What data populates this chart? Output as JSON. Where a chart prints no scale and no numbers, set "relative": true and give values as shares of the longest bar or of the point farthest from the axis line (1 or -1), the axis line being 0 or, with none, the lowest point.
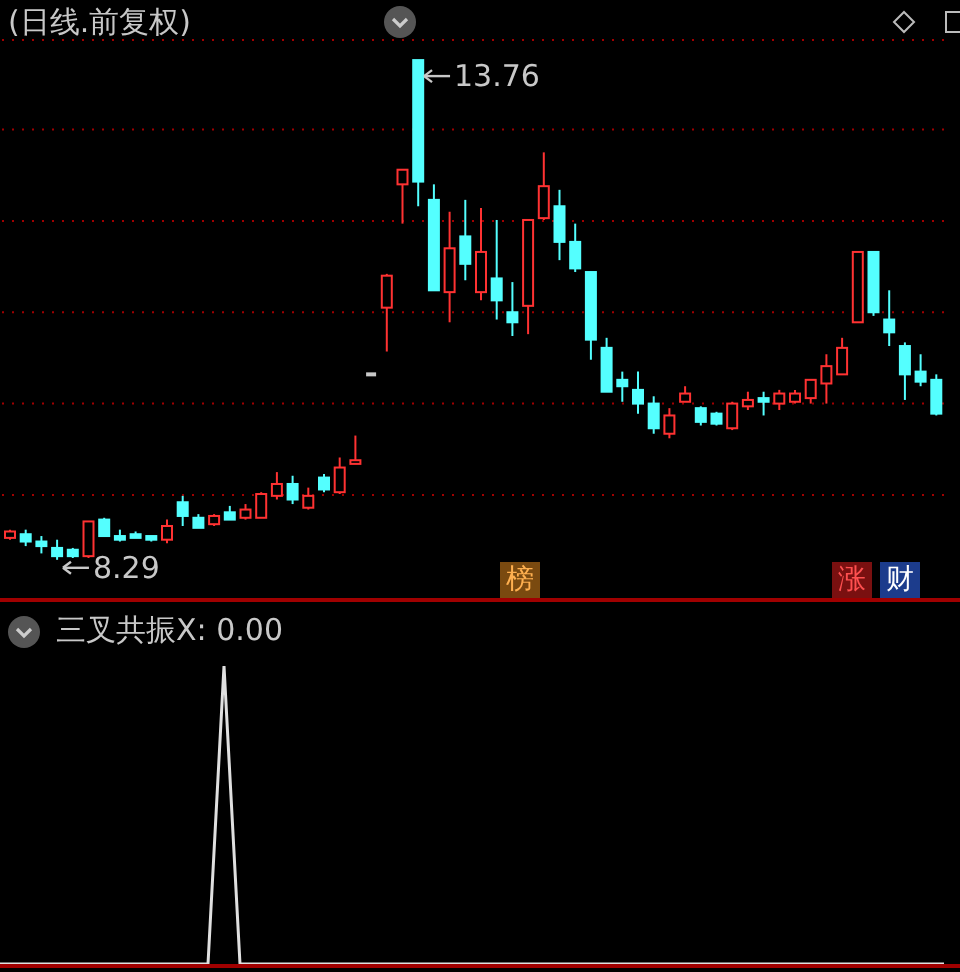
{
  "chart_data": [
    {
      "type": "candlestick",
      "title": "(日线.前复权)",
      "categories": [
        null,
        null,
        null,
        null,
        null,
        null,
        null,
        null,
        null,
        null,
        null,
        null,
        null,
        null,
        null,
        null,
        null,
        null,
        null,
        null,
        null,
        null,
        null,
        null,
        null,
        null,
        null,
        null,
        null,
        null,
        null,
        null,
        null,
        null,
        null,
        null,
        null,
        null,
        null,
        null,
        null,
        null,
        null,
        null,
        null,
        null,
        null,
        null,
        null,
        null,
        null,
        null,
        null,
        null,
        null,
        null,
        null,
        null,
        null,
        null
      ],
      "ohlc": [
        [
          8.53,
          8.62,
          8.51,
          8.6
        ],
        [
          8.57,
          8.62,
          8.44,
          8.49
        ],
        [
          8.49,
          8.55,
          8.36,
          8.44
        ],
        [
          8.42,
          8.51,
          8.29,
          8.33
        ],
        [
          8.4,
          8.42,
          8.31,
          8.33
        ],
        [
          8.33,
          8.71,
          8.31,
          8.71
        ],
        [
          8.73,
          8.75,
          8.55,
          8.55
        ],
        [
          8.55,
          8.62,
          8.49,
          8.51
        ],
        [
          8.57,
          8.6,
          8.53,
          8.53
        ],
        [
          8.55,
          8.55,
          8.49,
          8.51
        ],
        [
          8.51,
          8.73,
          8.47,
          8.66
        ],
        [
          8.92,
          8.99,
          8.66,
          8.77
        ],
        [
          8.75,
          8.79,
          8.64,
          8.64
        ],
        [
          8.68,
          8.79,
          8.66,
          8.77
        ],
        [
          8.81,
          8.88,
          8.73,
          8.73
        ],
        [
          8.75,
          8.9,
          8.73,
          8.84
        ],
        [
          8.75,
          9.03,
          8.75,
          9.01
        ],
        [
          8.99,
          9.25,
          8.95,
          9.12
        ],
        [
          9.12,
          9.21,
          8.9,
          8.95
        ],
        [
          8.86,
          9.08,
          8.84,
          8.99
        ],
        [
          9.19,
          9.23,
          9.03,
          9.06
        ],
        [
          9.03,
          9.41,
          9.01,
          9.3
        ],
        [
          9.34,
          9.65,
          9.34,
          9.38
        ],
        [
          10.32,
          10.32,
          10.32,
          10.32
        ],
        [
          11.05,
          11.42,
          10.57,
          11.4
        ],
        [
          12.4,
          12.56,
          11.97,
          12.56
        ],
        [
          13.76,
          13.76,
          12.16,
          12.43
        ],
        [
          12.23,
          12.4,
          11.24,
          11.24
        ],
        [
          11.22,
          12.1,
          10.89,
          11.7
        ],
        [
          11.83,
          12.23,
          11.35,
          11.53
        ],
        [
          11.22,
          12.14,
          11.13,
          11.66
        ],
        [
          11.37,
          12.01,
          10.92,
          11.13
        ],
        [
          11.0,
          11.33,
          10.74,
          10.89
        ],
        [
          11.07,
          12.01,
          10.76,
          12.01
        ],
        [
          12.03,
          12.75,
          12.01,
          12.38
        ],
        [
          12.16,
          12.34,
          11.57,
          11.77
        ],
        [
          11.77,
          11.97,
          11.44,
          11.48
        ],
        [
          11.44,
          11.44,
          10.48,
          10.7
        ],
        [
          10.61,
          10.72,
          10.13,
          10.13
        ],
        [
          10.26,
          10.35,
          10.02,
          10.19
        ],
        [
          10.15,
          10.35,
          9.89,
          10.0
        ],
        [
          10.0,
          10.08,
          9.67,
          9.73
        ],
        [
          9.67,
          9.95,
          9.62,
          9.87
        ],
        [
          10.02,
          10.19,
          10.02,
          10.11
        ],
        [
          9.95,
          9.97,
          9.76,
          9.8
        ],
        [
          9.89,
          9.91,
          9.76,
          9.78
        ],
        [
          9.73,
          10.02,
          9.71,
          10.0
        ],
        [
          9.97,
          10.13,
          9.93,
          10.04
        ],
        [
          10.06,
          10.13,
          9.87,
          10.02
        ],
        [
          10.0,
          10.15,
          9.93,
          10.11
        ],
        [
          10.02,
          10.15,
          10.0,
          10.11
        ],
        [
          10.06,
          10.26,
          10.0,
          10.26
        ],
        [
          10.22,
          10.54,
          10.0,
          10.41
        ],
        [
          10.32,
          10.72,
          10.32,
          10.61
        ],
        [
          10.89,
          11.66,
          10.89,
          11.66
        ],
        [
          11.66,
          11.66,
          10.96,
          11.0
        ],
        [
          10.92,
          11.24,
          10.63,
          10.78
        ],
        [
          10.63,
          10.67,
          10.04,
          10.32
        ],
        [
          10.35,
          10.54,
          10.19,
          10.24
        ],
        [
          10.26,
          10.32,
          9.87,
          9.89
        ]
      ],
      "ylim": [
        7.85,
        13.98
      ],
      "yticks": [
        {
          "value": 9,
          "label": null
        },
        {
          "value": 10,
          "label": null
        },
        {
          "value": 11,
          "label": null
        },
        {
          "value": 12,
          "label": null
        },
        {
          "value": 13,
          "label": null
        }
      ],
      "grid": "y",
      "annotations": [
        "13.76",
        "8.29",
        "榜",
        "涨",
        "财"
      ]
    },
    {
      "type": "line",
      "title": "三叉共振X: 0.00",
      "relative": true,
      "categories": [
        null,
        null,
        null,
        null,
        null,
        null,
        null,
        null,
        null,
        null,
        null,
        null,
        null,
        null,
        null,
        null,
        null,
        null,
        null,
        null,
        null,
        null,
        null,
        null,
        null,
        null,
        null,
        null,
        null,
        null,
        null,
        null,
        null,
        null,
        null,
        null,
        null,
        null,
        null,
        null,
        null,
        null,
        null,
        null,
        null,
        null,
        null,
        null,
        null,
        null,
        null,
        null,
        null,
        null,
        null,
        null,
        null,
        null,
        null,
        null
      ],
      "series": [
        {
          "color": "#e0e0e0",
          "values": [
            0,
            0,
            0,
            0,
            0,
            0,
            0,
            0,
            0,
            0,
            0,
            0,
            0,
            0,
            1,
            0,
            0,
            0,
            0,
            0,
            0,
            0,
            0,
            0,
            0,
            0,
            0,
            0,
            0,
            0,
            0,
            0,
            0,
            0,
            0,
            0,
            0,
            0,
            0,
            0,
            0,
            0,
            0,
            0,
            0,
            0,
            0,
            0,
            0,
            0,
            0,
            0,
            0,
            0,
            0,
            0,
            0,
            0,
            0,
            0
          ]
        }
      ]
    }
  ]
}
